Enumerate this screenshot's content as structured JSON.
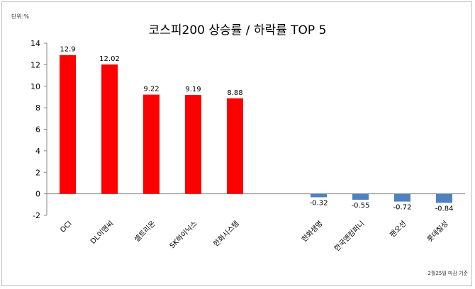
{
  "unit_label": "단위:%",
  "note": "2월25일 마감 기준",
  "chart_data": {
    "type": "bar",
    "title": "코스피200 상승률 / 하락률  TOP 5",
    "categories": [
      "OCI",
      "DL이앤씨",
      "셀트리온",
      "SK하이닉스",
      "한화시스템",
      "",
      "한화생명",
      "한국앤컴퍼니",
      "팬오션",
      "롯데칠성"
    ],
    "values": [
      12.9,
      12.02,
      9.22,
      9.19,
      8.88,
      null,
      -0.32,
      -0.55,
      -0.72,
      -0.84
    ],
    "data_labels": [
      "12.9",
      "12.02",
      "9.22",
      "9.19",
      "8.88",
      "",
      "-0.32",
      "-0.55",
      "-0.72",
      "-0.84"
    ],
    "ylim": [
      -2,
      14
    ],
    "yticks": [
      -2,
      0,
      2,
      4,
      6,
      8,
      10,
      12,
      14
    ],
    "grid": false,
    "legend": "none",
    "colors": {
      "positive": "#ff0000",
      "negative": "#4f81bd"
    }
  }
}
